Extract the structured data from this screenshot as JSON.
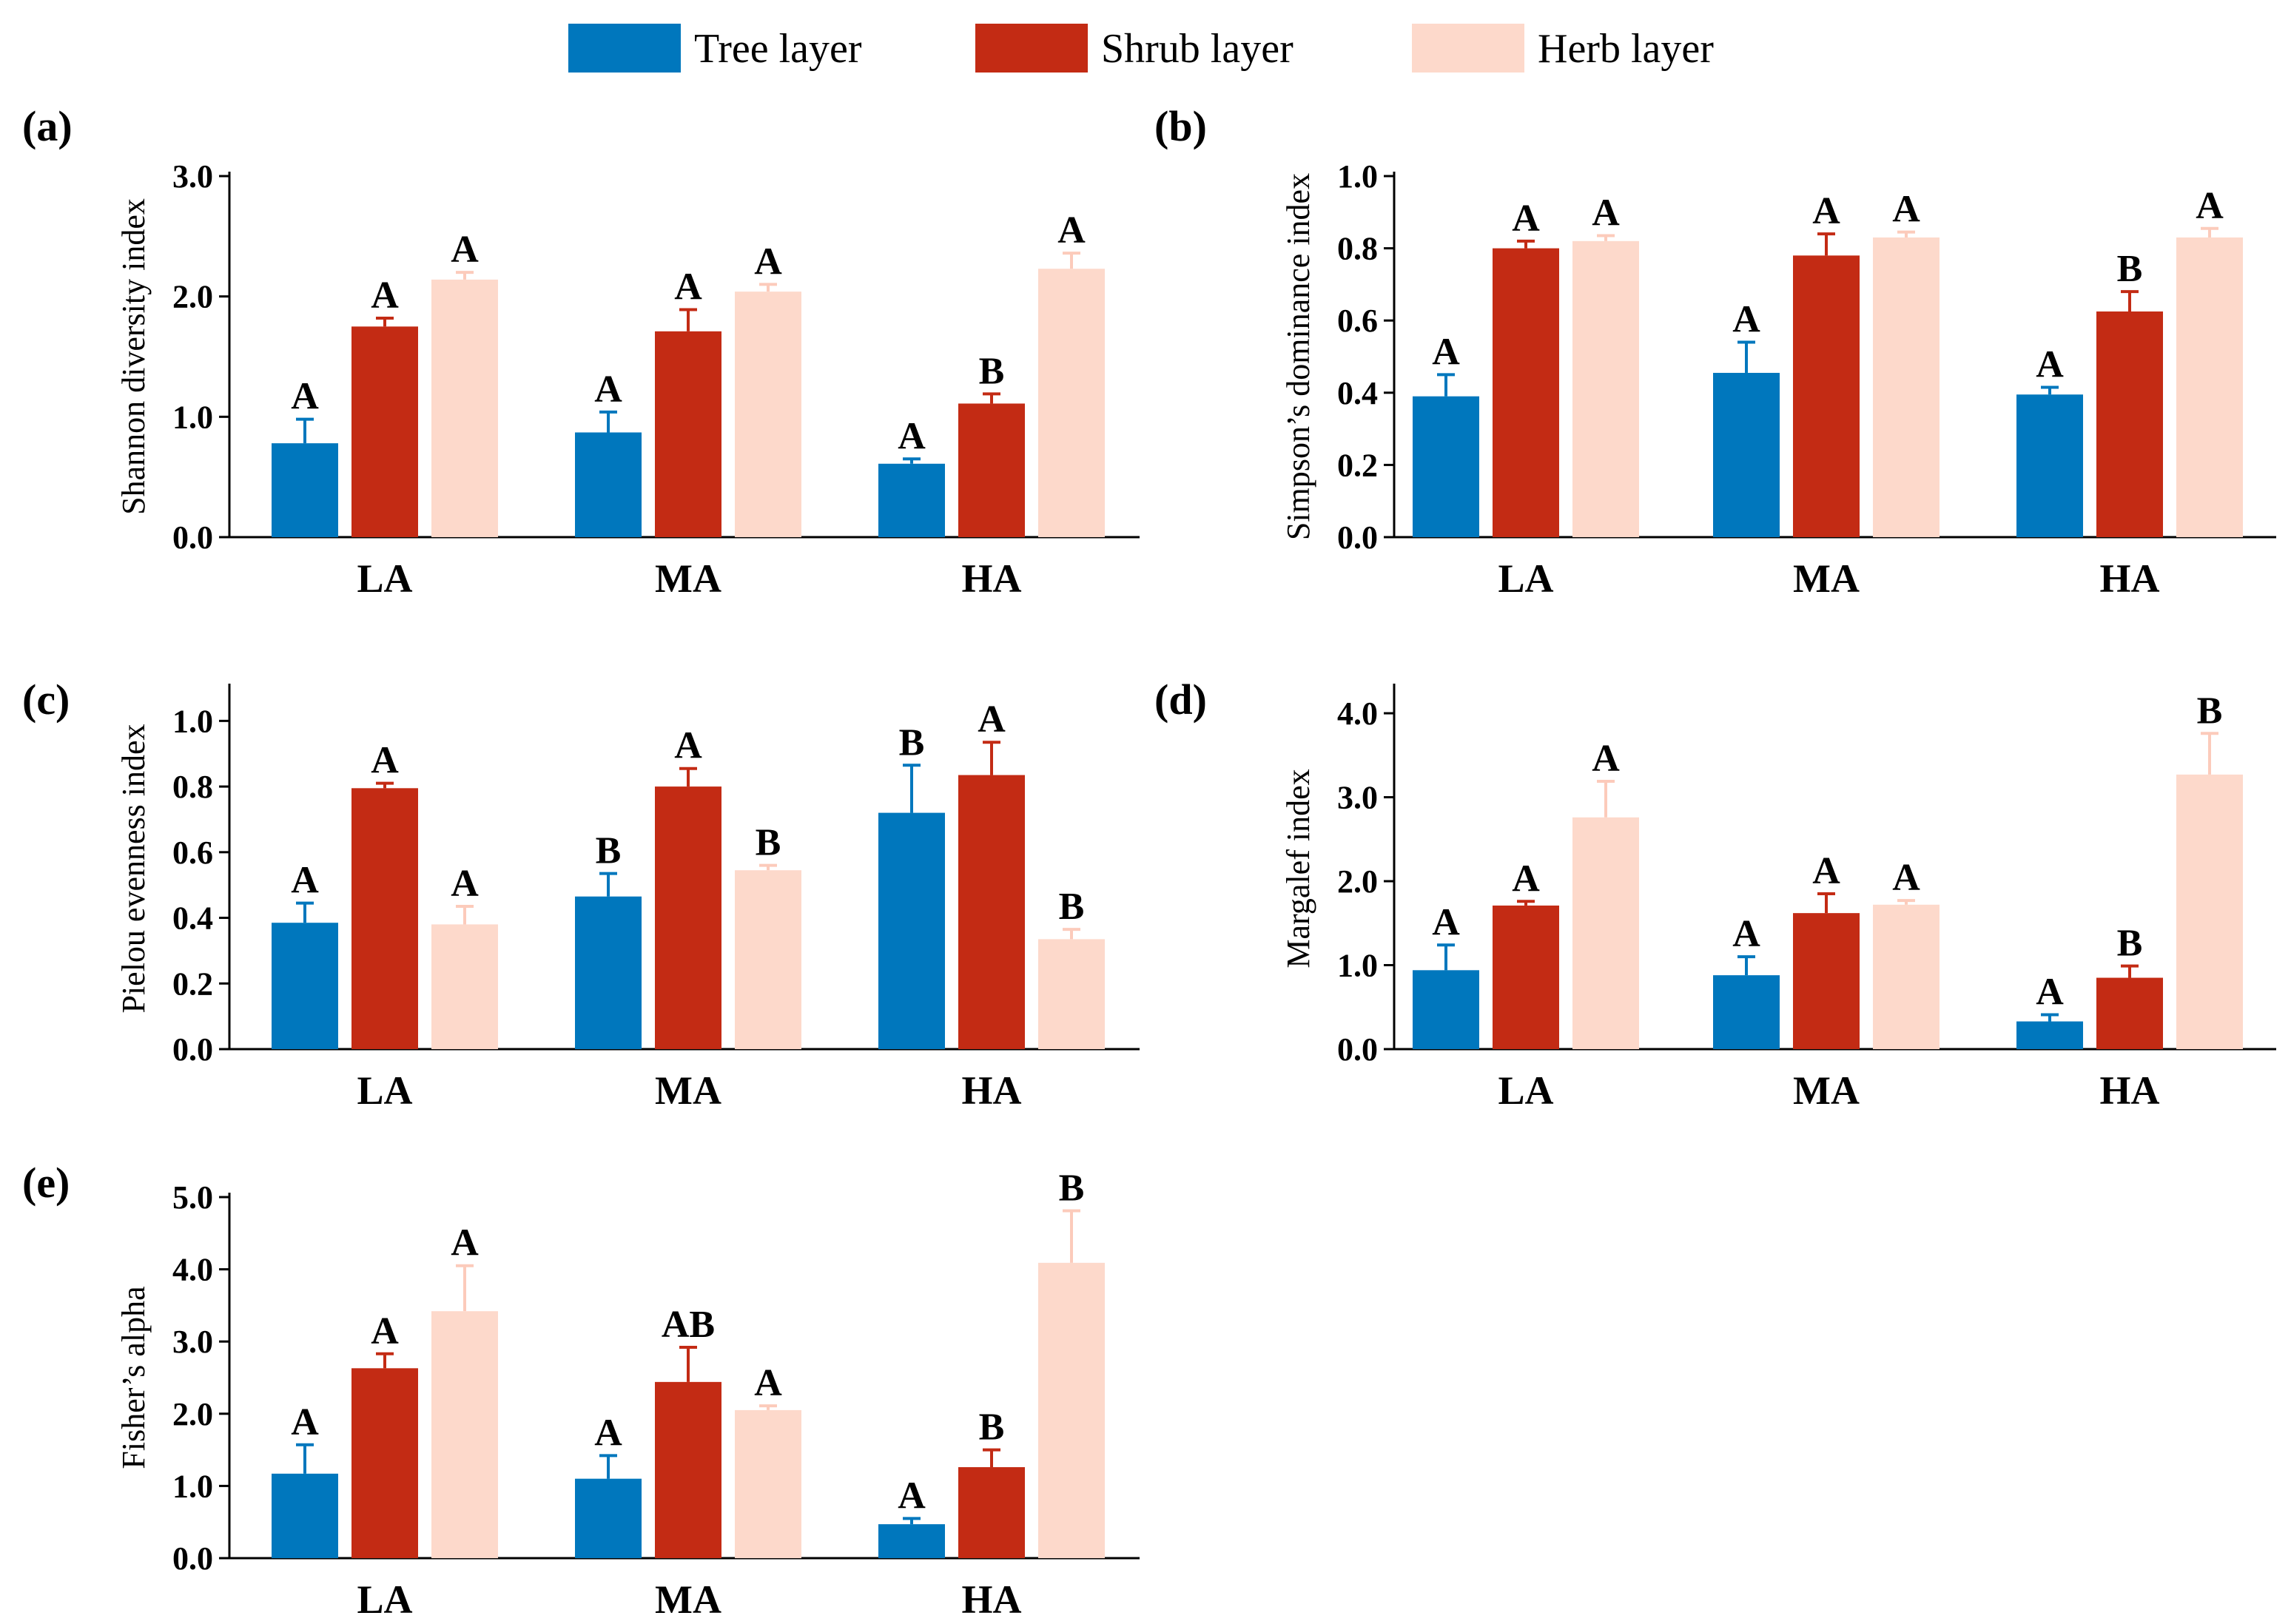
{
  "legend": {
    "items": [
      {
        "name": "Tree layer",
        "color": "#0077bd"
      },
      {
        "name": "Shrub layer",
        "color": "#c32b14"
      },
      {
        "name": "Herb layer",
        "color": "#fdd9cb"
      }
    ]
  },
  "chart_data": [
    {
      "panel": "(a)",
      "type": "bar",
      "title": "",
      "xlabel": "",
      "ylabel": "Shannon diversity index",
      "categories": [
        "LA",
        "MA",
        "HA"
      ],
      "ylim": [
        0,
        3.0
      ],
      "yticks": [
        0.0,
        1.0,
        2.0,
        3.0
      ],
      "ytick_labels": [
        "0.0",
        "1.0",
        "2.0",
        "3.0"
      ],
      "series": [
        {
          "name": "Tree layer",
          "values": [
            0.78,
            0.87,
            0.61
          ],
          "errors": [
            0.2,
            0.17,
            0.04
          ],
          "letters": [
            "A",
            "A",
            "A"
          ]
        },
        {
          "name": "Shrub layer",
          "values": [
            1.75,
            1.71,
            1.11
          ],
          "errors": [
            0.07,
            0.18,
            0.08
          ],
          "letters": [
            "A",
            "A",
            "B"
          ]
        },
        {
          "name": "Herb layer",
          "values": [
            2.14,
            2.04,
            2.23
          ],
          "errors": [
            0.06,
            0.06,
            0.13
          ],
          "letters": [
            "A",
            "A",
            "A"
          ]
        }
      ]
    },
    {
      "panel": "(b)",
      "type": "bar",
      "title": "",
      "xlabel": "",
      "ylabel": "Simpson’s dominance index",
      "categories": [
        "LA",
        "MA",
        "HA"
      ],
      "ylim": [
        0,
        1.0
      ],
      "yticks": [
        0.0,
        0.2,
        0.4,
        0.6,
        0.8,
        1.0
      ],
      "ytick_labels": [
        "0.0",
        "0.2",
        "0.4",
        "0.6",
        "0.8",
        "1.0"
      ],
      "series": [
        {
          "name": "Tree layer",
          "values": [
            0.39,
            0.455,
            0.395
          ],
          "errors": [
            0.06,
            0.085,
            0.02
          ],
          "letters": [
            "A",
            "A",
            "A"
          ]
        },
        {
          "name": "Shrub layer",
          "values": [
            0.8,
            0.78,
            0.625
          ],
          "errors": [
            0.02,
            0.06,
            0.055
          ],
          "letters": [
            "A",
            "A",
            "B"
          ]
        },
        {
          "name": "Herb layer",
          "values": [
            0.82,
            0.83,
            0.83
          ],
          "errors": [
            0.015,
            0.015,
            0.025
          ],
          "letters": [
            "A",
            "A",
            "A"
          ]
        }
      ]
    },
    {
      "panel": "(c)",
      "type": "bar",
      "title": "",
      "xlabel": "",
      "ylabel": "Pielou evenness index",
      "categories": [
        "LA",
        "MA",
        "HA"
      ],
      "ylim": [
        0,
        1.1
      ],
      "yticks": [
        0.0,
        0.2,
        0.4,
        0.6,
        0.8,
        1.0
      ],
      "ytick_labels": [
        "0.0",
        "0.2",
        "0.4",
        "0.6",
        "0.8",
        "1.0"
      ],
      "series": [
        {
          "name": "Tree layer",
          "values": [
            0.385,
            0.465,
            0.72
          ],
          "errors": [
            0.06,
            0.07,
            0.145
          ],
          "letters": [
            "A",
            "B",
            "B"
          ]
        },
        {
          "name": "Shrub layer",
          "values": [
            0.795,
            0.8,
            0.835
          ],
          "errors": [
            0.015,
            0.055,
            0.1
          ],
          "letters": [
            "A",
            "A",
            "A"
          ]
        },
        {
          "name": "Herb layer",
          "values": [
            0.38,
            0.545,
            0.335
          ],
          "errors": [
            0.055,
            0.015,
            0.03
          ],
          "letters": [
            "A",
            "B",
            "B"
          ]
        }
      ]
    },
    {
      "panel": "(d)",
      "type": "bar",
      "title": "",
      "xlabel": "",
      "ylabel": "Margalef index",
      "categories": [
        "LA",
        "MA",
        "HA"
      ],
      "ylim": [
        0,
        4.3
      ],
      "yticks": [
        0.0,
        1.0,
        2.0,
        3.0,
        4.0
      ],
      "ytick_labels": [
        "0.0",
        "1.0",
        "2.0",
        "3.0",
        "4.0"
      ],
      "series": [
        {
          "name": "Tree layer",
          "values": [
            0.94,
            0.88,
            0.33
          ],
          "errors": [
            0.3,
            0.22,
            0.08
          ],
          "letters": [
            "A",
            "A",
            "A"
          ]
        },
        {
          "name": "Shrub layer",
          "values": [
            1.71,
            1.62,
            0.85
          ],
          "errors": [
            0.05,
            0.23,
            0.14
          ],
          "letters": [
            "A",
            "A",
            "B"
          ]
        },
        {
          "name": "Herb layer",
          "values": [
            2.76,
            1.72,
            3.27
          ],
          "errors": [
            0.43,
            0.05,
            0.49
          ],
          "letters": [
            "A",
            "A",
            "B"
          ]
        }
      ]
    },
    {
      "panel": "(e)",
      "type": "bar",
      "title": "",
      "xlabel": "",
      "ylabel": "Fisher’s alpha",
      "categories": [
        "LA",
        "MA",
        "HA"
      ],
      "ylim": [
        0,
        5.0
      ],
      "yticks": [
        0.0,
        1.0,
        2.0,
        3.0,
        4.0,
        5.0
      ],
      "ytick_labels": [
        "0.0",
        "1.0",
        "2.0",
        "3.0",
        "4.0",
        "5.0"
      ],
      "series": [
        {
          "name": "Tree layer",
          "values": [
            1.17,
            1.1,
            0.47
          ],
          "errors": [
            0.4,
            0.32,
            0.08
          ],
          "letters": [
            "A",
            "A",
            "A"
          ]
        },
        {
          "name": "Shrub layer",
          "values": [
            2.63,
            2.44,
            1.26
          ],
          "errors": [
            0.2,
            0.48,
            0.24
          ],
          "letters": [
            "A",
            "AB",
            "B"
          ]
        },
        {
          "name": "Herb layer",
          "values": [
            3.42,
            2.05,
            4.09
          ],
          "errors": [
            0.63,
            0.06,
            0.72
          ],
          "letters": [
            "A",
            "A",
            "B"
          ]
        }
      ]
    }
  ]
}
